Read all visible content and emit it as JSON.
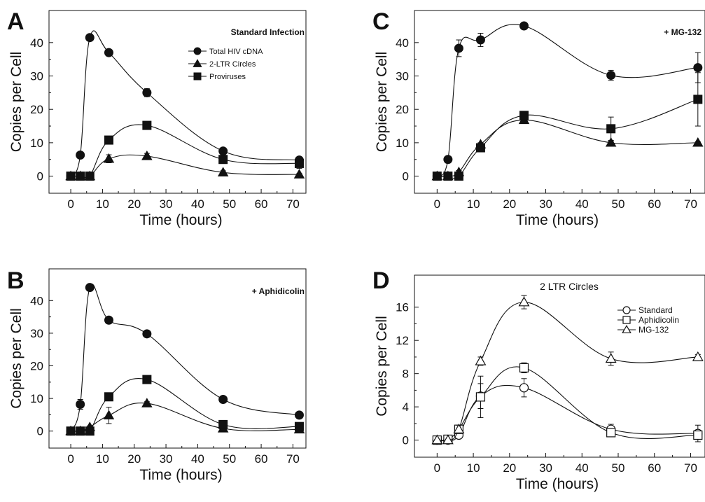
{
  "chart_data": [
    {
      "panel": "A",
      "type": "line",
      "title": "Standard Infection",
      "xlabel": "Time (hours)",
      "ylabel": "Copies per Cell",
      "xlim": [
        0,
        72
      ],
      "ylim": [
        0,
        45
      ],
      "xticks": [
        0,
        10,
        20,
        30,
        40,
        50,
        60,
        70
      ],
      "yticks": [
        0,
        10,
        20,
        30,
        40
      ],
      "legend_position": "top-right",
      "grid": false,
      "series": [
        {
          "name": "Total HIV cDNA",
          "marker": "circle",
          "filled": true,
          "x": [
            0,
            3,
            6,
            12,
            24,
            48,
            72
          ],
          "y": [
            0,
            6.3,
            41.5,
            37,
            25,
            7.5,
            4.8
          ],
          "err": [
            0,
            0.8,
            0,
            0.5,
            1.2,
            0.5,
            0.3
          ]
        },
        {
          "name": "2-LTR Circles",
          "marker": "triangle",
          "filled": true,
          "x": [
            0,
            3,
            6,
            12,
            24,
            48,
            72
          ],
          "y": [
            0,
            0,
            0,
            5.2,
            6,
            1.1,
            0.5
          ],
          "err": [
            0,
            0,
            0,
            1.2,
            0.8,
            0.5,
            0.3
          ]
        },
        {
          "name": "Proviruses",
          "marker": "square",
          "filled": true,
          "x": [
            0,
            3,
            6,
            12,
            24,
            48,
            72
          ],
          "y": [
            0,
            0,
            0,
            10.8,
            15.2,
            5,
            3.8
          ],
          "err": [
            0,
            0,
            0,
            0.5,
            0.6,
            0.8,
            1.5
          ]
        }
      ]
    },
    {
      "panel": "B",
      "type": "line",
      "title": "+ Aphidicolin",
      "xlabel": "Time (hours)",
      "ylabel": "Copies per Cell",
      "xlim": [
        0,
        72
      ],
      "ylim": [
        0,
        45
      ],
      "xticks": [
        0,
        10,
        20,
        30,
        40,
        50,
        60,
        70
      ],
      "yticks": [
        0,
        10,
        20,
        30,
        40
      ],
      "grid": false,
      "series": [
        {
          "marker": "circle",
          "filled": true,
          "x": [
            0,
            3,
            6,
            12,
            24,
            48,
            72
          ],
          "y": [
            0,
            8.2,
            44,
            34,
            29.8,
            9.7,
            4.9
          ],
          "err": [
            0,
            1.5,
            1,
            0.5,
            0.5,
            0.4,
            0.3
          ]
        },
        {
          "marker": "triangle",
          "filled": true,
          "x": [
            0,
            3,
            6,
            12,
            24,
            48,
            72
          ],
          "y": [
            0,
            0,
            1.2,
            4.8,
            8.5,
            0.8,
            0.5
          ],
          "err": [
            0,
            0,
            0.4,
            2.5,
            0.5,
            0.3,
            1
          ]
        },
        {
          "marker": "square",
          "filled": true,
          "x": [
            0,
            3,
            6,
            12,
            24,
            48,
            72
          ],
          "y": [
            0,
            0,
            0,
            10.5,
            15.8,
            2,
            1.4
          ],
          "err": [
            0,
            0,
            0,
            0.5,
            0.5,
            0.4,
            0.3
          ]
        }
      ]
    },
    {
      "panel": "C",
      "type": "line",
      "title": "+ MG-132",
      "xlabel": "Time (hours)",
      "ylabel": "Copies per Cell",
      "xlim": [
        0,
        72
      ],
      "ylim": [
        0,
        45
      ],
      "xticks": [
        0,
        10,
        20,
        30,
        40,
        50,
        60,
        70
      ],
      "yticks": [
        0,
        10,
        20,
        30,
        40
      ],
      "grid": false,
      "series": [
        {
          "marker": "circle",
          "filled": true,
          "x": [
            0,
            3,
            6,
            12,
            24,
            48,
            72
          ],
          "y": [
            0,
            5,
            38.3,
            40.8,
            45,
            30.2,
            32.5
          ],
          "err": [
            0,
            0.3,
            2.5,
            2,
            1,
            1.5,
            4.5
          ]
        },
        {
          "marker": "triangle",
          "filled": true,
          "x": [
            0,
            3,
            6,
            12,
            24,
            48,
            72
          ],
          "y": [
            0,
            0,
            1.2,
            9.5,
            16.8,
            10,
            10
          ],
          "err": [
            0,
            0,
            0.5,
            0.5,
            0.8,
            0.5,
            0.3
          ]
        },
        {
          "marker": "square",
          "filled": true,
          "x": [
            0,
            3,
            6,
            12,
            24,
            48,
            72
          ],
          "y": [
            0,
            0,
            0,
            8.5,
            18.2,
            14.2,
            23
          ],
          "err": [
            0,
            0,
            0,
            0.5,
            0.8,
            3.5,
            8
          ]
        }
      ]
    },
    {
      "panel": "D",
      "type": "line",
      "title": "2 LTR Circles",
      "xlabel": "Time (hours)",
      "ylabel": "Copies per Cell",
      "xlim": [
        0,
        72
      ],
      "ylim": [
        0,
        18
      ],
      "xticks": [
        0,
        10,
        20,
        30,
        40,
        50,
        60,
        70
      ],
      "yticks": [
        0,
        4,
        8,
        12,
        16
      ],
      "legend_position": "right",
      "grid": false,
      "series": [
        {
          "name": "Standard",
          "marker": "circle",
          "filled": false,
          "x": [
            0,
            3,
            6,
            12,
            24,
            48,
            72
          ],
          "y": [
            0,
            0,
            0.6,
            5.3,
            6.3,
            1.3,
            0.8
          ],
          "err": [
            0,
            0,
            0.3,
            1.5,
            1.1,
            0.6,
            1
          ]
        },
        {
          "name": "Aphidicolin",
          "marker": "square",
          "filled": false,
          "x": [
            0,
            3,
            6,
            12,
            24,
            48,
            72
          ],
          "y": [
            0,
            0.1,
            1.3,
            5.2,
            8.7,
            0.9,
            0.6
          ],
          "err": [
            0,
            0,
            0.3,
            2.5,
            0.6,
            0.3,
            0.3
          ]
        },
        {
          "name": "MG-132",
          "marker": "triangle",
          "filled": false,
          "x": [
            0,
            3,
            6,
            12,
            24,
            48,
            72
          ],
          "y": [
            0,
            0,
            1.3,
            9.5,
            16.6,
            9.8,
            10
          ],
          "err": [
            0,
            0,
            0.5,
            0.5,
            0.8,
            0.8,
            0.3
          ]
        }
      ]
    }
  ]
}
